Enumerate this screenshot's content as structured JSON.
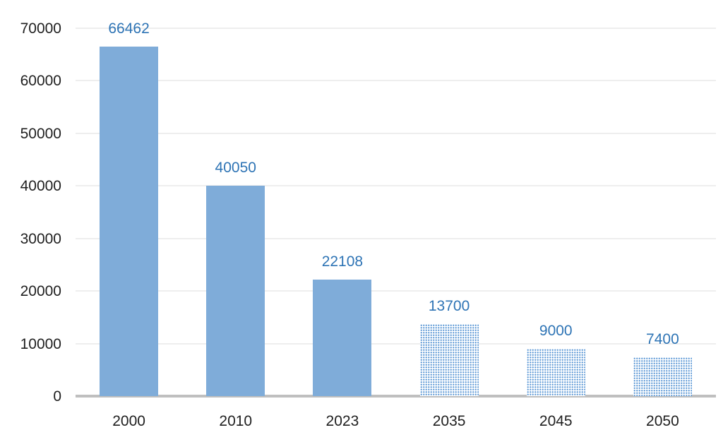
{
  "colors": {
    "solid_bar": "#7facd9",
    "pattern_dot": "#5d99d6",
    "data_label": "#2e74b5",
    "axis_label": "#1f1f1f",
    "gridline": "#eeeeee",
    "baseline": "#bfbfbf",
    "background": "#ffffff"
  },
  "chart_data": {
    "type": "bar",
    "title": "",
    "xlabel": "",
    "ylabel": "",
    "categories": [
      "2000",
      "2010",
      "2023",
      "2035",
      "2045",
      "2050"
    ],
    "values": [
      66462,
      40050,
      22108,
      13700,
      9000,
      7400
    ],
    "data_labels": [
      "66462",
      "40050",
      "22108",
      "13700",
      "9000",
      "7400"
    ],
    "bar_styles": [
      "solid",
      "solid",
      "solid",
      "pattern",
      "pattern",
      "pattern"
    ],
    "ylim": [
      0,
      70000
    ],
    "yticks": [
      0,
      10000,
      20000,
      30000,
      40000,
      50000,
      60000,
      70000
    ],
    "ytick_labels": [
      "0",
      "10000",
      "20000",
      "30000",
      "40000",
      "50000",
      "60000",
      "70000"
    ],
    "grid": "horizontal",
    "legend": "none"
  }
}
